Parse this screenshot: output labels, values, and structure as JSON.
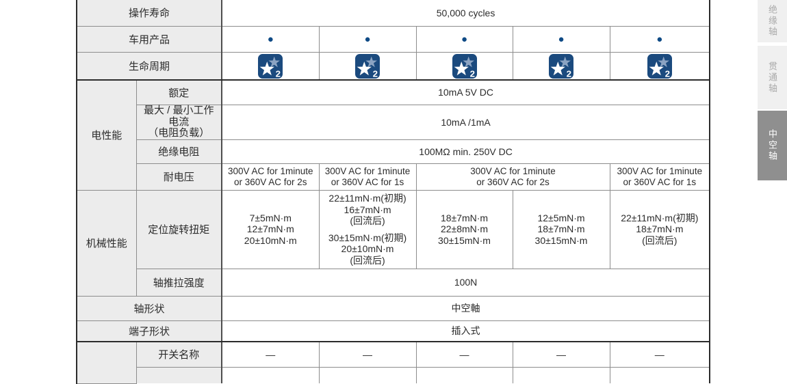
{
  "colors": {
    "header_bg": "#ececec",
    "border_inner": "#8c8c8c",
    "border_strong": "#2b2b2b",
    "bullet_blue": "#0e4a85",
    "badge_bg": "#1b4a7e",
    "badge_star_light": "#8ba3c2",
    "badge_star_white": "#ffffff",
    "tab_bg": "#f0f0f0",
    "tab_text": "#aaaaaa",
    "tab_active_bg": "#8f8f8f",
    "tab_active_text": "#ffffff"
  },
  "rows": {
    "operating_life": {
      "label": "操作寿命",
      "value": "50,000 cycles"
    },
    "automotive": {
      "label": "车用产品",
      "marker": "●"
    },
    "lifecycle": {
      "label": "生命周期",
      "badge_number": "2"
    },
    "electrical": {
      "group_label": "电性能",
      "rated": {
        "label": "额定",
        "value": "10mA 5V DC"
      },
      "current": {
        "label_lines": [
          "最大 / 最小工作电流",
          "（电阻负载）"
        ],
        "value": "10mA /1mA"
      },
      "insulation": {
        "label": "绝缘电阻",
        "value": "100MΩ min. 250V DC"
      },
      "withstand": {
        "label": "耐电压",
        "cells": [
          {
            "lines": [
              "300V AC  for 1minute",
              "or 360V AC for 2s"
            ]
          },
          {
            "lines": [
              "300V AC  for 1minute",
              "or 360V AC for 1s"
            ]
          },
          {
            "lines": [
              "300V AC for 1minute",
              "or 360V AC for 2s"
            ]
          },
          {
            "lines": [
              "300V AC  for 1minute",
              "or 360V AC for 1s"
            ]
          }
        ]
      }
    },
    "mechanical": {
      "group_label": "机械性能",
      "torque": {
        "label": "定位旋转扭矩",
        "cells": [
          {
            "lines": [
              "7±5mN·m",
              "12±7mN·m",
              "20±10mN·m"
            ]
          },
          {
            "lines": [
              "22±11mN·m(初期)",
              "16±7mN·m",
              "(回流后)",
              "",
              "30±15mN·m(初期)",
              "20±10mN·m",
              "(回流后)"
            ]
          },
          {
            "lines": [
              "18±7mN·m",
              "22±8mN·m",
              "30±15mN·m"
            ]
          },
          {
            "lines": [
              "12±5mN·m",
              "18±7mN·m",
              "30±15mN·m"
            ]
          },
          {
            "lines": [
              "22±11mN·m(初期)",
              "18±7mN·m",
              "(回流后)"
            ]
          }
        ]
      },
      "push_pull": {
        "label": "轴推拉强度",
        "value": "100N"
      }
    },
    "shaft_shape": {
      "label": "轴形状",
      "value": "中空軸"
    },
    "terminal_shape": {
      "label": "端子形状",
      "value": "插入式"
    },
    "switch_name": {
      "label": "开关名称",
      "values": [
        "—",
        "—",
        "—",
        "—",
        "—"
      ]
    }
  },
  "sidebar": {
    "tabs": [
      {
        "label": "绝缘轴",
        "active": false
      },
      {
        "label": "贯通轴",
        "active": false
      },
      {
        "label": "中空轴",
        "active": true
      }
    ]
  }
}
